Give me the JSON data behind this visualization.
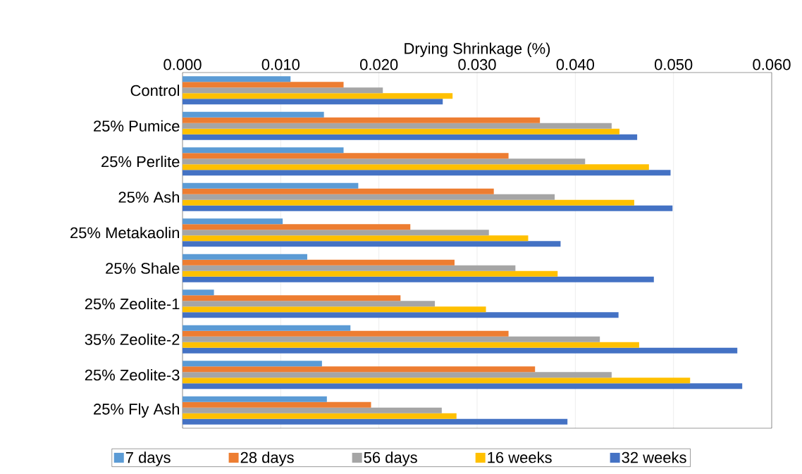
{
  "chart_data": {
    "type": "bar",
    "orientation": "horizontal",
    "xlabel": "Drying Shrinkage (%)",
    "categories": [
      "Control",
      "25% Pumice",
      "25% Perlite",
      "25% Ash",
      "25% Metakaolin",
      "25% Shale",
      "25% Zeolite-1",
      "35% Zeolite-2",
      "25% Zeolite-3",
      "25% Fly Ash"
    ],
    "series": [
      {
        "name": "7 days",
        "color": "#5b9bd5",
        "values": [
          0.011,
          0.0144,
          0.0164,
          0.0179,
          0.0102,
          0.0127,
          0.0032,
          0.0171,
          0.0142,
          0.0147
        ]
      },
      {
        "name": "28 days",
        "color": "#ed7d31",
        "values": [
          0.0164,
          0.0364,
          0.0332,
          0.0317,
          0.0232,
          0.0277,
          0.0222,
          0.0332,
          0.0359,
          0.0192
        ]
      },
      {
        "name": "56 days",
        "color": "#a5a5a5",
        "values": [
          0.0204,
          0.0437,
          0.041,
          0.0379,
          0.0312,
          0.0339,
          0.0257,
          0.0425,
          0.0437,
          0.0264
        ]
      },
      {
        "name": "16 weeks",
        "color": "#ffc000",
        "values": [
          0.0275,
          0.0445,
          0.0475,
          0.046,
          0.0352,
          0.0382,
          0.0309,
          0.0465,
          0.0517,
          0.0279
        ]
      },
      {
        "name": "32 weeks",
        "color": "#4472c4",
        "values": [
          0.0265,
          0.0463,
          0.0497,
          0.0499,
          0.0385,
          0.048,
          0.0444,
          0.0565,
          0.057,
          0.0392
        ]
      }
    ],
    "xlim": [
      0,
      0.06
    ],
    "xticks": [
      {
        "value": 0,
        "label": "0.000"
      },
      {
        "value": 0.01,
        "label": "0.010"
      },
      {
        "value": 0.02,
        "label": "0.020"
      },
      {
        "value": 0.03,
        "label": "0.030"
      },
      {
        "value": 0.04,
        "label": "0.040"
      },
      {
        "value": 0.05,
        "label": "0.050"
      },
      {
        "value": 0.06,
        "label": "0.060"
      }
    ],
    "grid": "x",
    "legend": "bottom"
  }
}
